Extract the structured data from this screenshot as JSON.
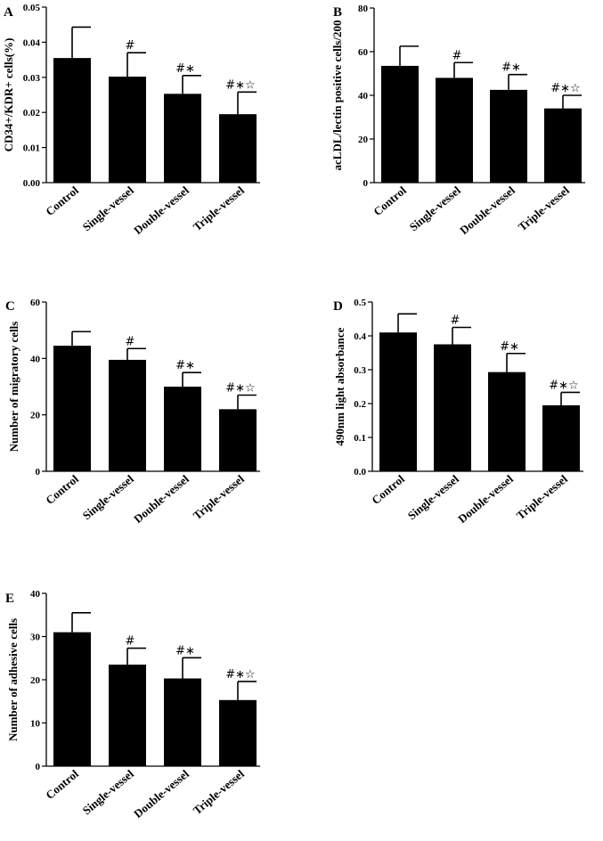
{
  "chart_data": [
    {
      "type": "bar",
      "panel": "A",
      "categories": [
        "Control",
        "Single-vessel",
        "Double-vessel",
        "Triple-vessel"
      ],
      "values": [
        0.0355,
        0.0302,
        0.0253,
        0.0195
      ],
      "errors": [
        0.0088,
        0.0068,
        0.0052,
        0.0063
      ],
      "annotations": [
        "",
        "#",
        "#∗",
        "#∗☆"
      ],
      "ylabel": "CD34+/KDR+ cells(%)",
      "ylim": [
        0,
        0.05
      ],
      "yticks": [
        0.0,
        0.01,
        0.02,
        0.03,
        0.04,
        0.05
      ],
      "ytick_labels": [
        "0.00",
        "0.01",
        "0.02",
        "0.03",
        "0.04",
        "0.05"
      ]
    },
    {
      "type": "bar",
      "panel": "B",
      "categories": [
        "Control",
        "Single-vessel",
        "Double-vessel",
        "Triple-vessel"
      ],
      "values": [
        53.5,
        48,
        42.5,
        34
      ],
      "errors": [
        9,
        7,
        7,
        6
      ],
      "annotations": [
        "",
        "#",
        "#∗",
        "#∗☆"
      ],
      "ylabel": "acLDL/lectin positive cells/200",
      "ylim": [
        0,
        80
      ],
      "yticks": [
        0,
        20,
        40,
        60,
        80
      ],
      "ytick_labels": [
        "0",
        "20",
        "40",
        "60",
        "80"
      ]
    },
    {
      "type": "bar",
      "panel": "C",
      "categories": [
        "Control",
        "Single-vessel",
        "Double-vessel",
        "Triple-vessel"
      ],
      "values": [
        44.5,
        39.5,
        30,
        22
      ],
      "errors": [
        5,
        4,
        5,
        5
      ],
      "annotations": [
        "",
        "#",
        "#∗",
        "#∗☆"
      ],
      "ylabel": "Number of migratory cells",
      "ylim": [
        0,
        60
      ],
      "yticks": [
        0,
        20,
        40,
        60
      ],
      "ytick_labels": [
        "0",
        "20",
        "40",
        "60"
      ]
    },
    {
      "type": "bar",
      "panel": "D",
      "categories": [
        "Control",
        "Single-vessel",
        "Double-vessel",
        "Triple-vessel"
      ],
      "values": [
        0.41,
        0.375,
        0.293,
        0.195
      ],
      "errors": [
        0.055,
        0.05,
        0.055,
        0.038
      ],
      "annotations": [
        "",
        "#",
        "#∗",
        "#∗☆"
      ],
      "ylabel": "490nm light absorbance",
      "ylim": [
        0,
        0.5
      ],
      "yticks": [
        0.0,
        0.1,
        0.2,
        0.3,
        0.4,
        0.5
      ],
      "ytick_labels": [
        "0.0",
        "0.1",
        "0.2",
        "0.3",
        "0.4",
        "0.5"
      ]
    },
    {
      "type": "bar",
      "panel": "E",
      "categories": [
        "Control",
        "Single-vessel",
        "Double-vessel",
        "Triple-vessel"
      ],
      "values": [
        31,
        23.5,
        20.3,
        15.3
      ],
      "errors": [
        4.5,
        3.8,
        4.8,
        4.3
      ],
      "annotations": [
        "",
        "#",
        "#∗",
        "#∗☆"
      ],
      "ylabel": "Number of adhesive cells",
      "ylim": [
        0,
        40
      ],
      "yticks": [
        0,
        10,
        20,
        30,
        40
      ],
      "ytick_labels": [
        "0",
        "10",
        "20",
        "30",
        "40"
      ]
    }
  ]
}
